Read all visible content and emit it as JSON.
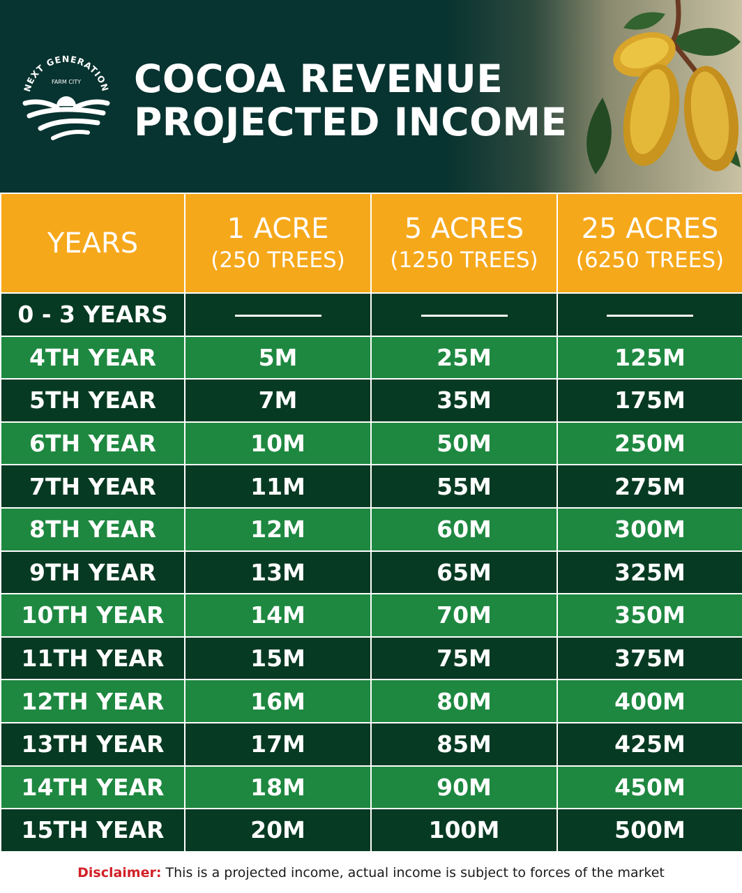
{
  "brand": {
    "arc_text": "NEXT GENERATION",
    "sub_text": "FARM CITY"
  },
  "header": {
    "title_line1": "COCOA REVENUE",
    "title_line2": "PROJECTED INCOME"
  },
  "table": {
    "columns": [
      {
        "main": "YEARS",
        "sub": ""
      },
      {
        "main": "1 ACRE",
        "sub": "(250 TREES)"
      },
      {
        "main": "5 ACRES",
        "sub": "(1250 TREES)"
      },
      {
        "main": "25 ACRES",
        "sub": "(6250 TREES)"
      }
    ],
    "rows": [
      {
        "year": "0 - 3 YEARS",
        "v1": "",
        "v5": "",
        "v25": "",
        "empty": true
      },
      {
        "year": "4TH YEAR",
        "v1": "5M",
        "v5": "25M",
        "v25": "125M"
      },
      {
        "year": "5TH YEAR",
        "v1": "7M",
        "v5": "35M",
        "v25": "175M"
      },
      {
        "year": "6TH YEAR",
        "v1": "10M",
        "v5": "50M",
        "v25": "250M"
      },
      {
        "year": "7TH YEAR",
        "v1": "11M",
        "v5": "55M",
        "v25": "275M"
      },
      {
        "year": "8TH YEAR",
        "v1": "12M",
        "v5": "60M",
        "v25": "300M"
      },
      {
        "year": "9TH YEAR",
        "v1": "13M",
        "v5": "65M",
        "v25": "325M"
      },
      {
        "year": "10TH YEAR",
        "v1": "14M",
        "v5": "70M",
        "v25": "350M"
      },
      {
        "year": "11TH YEAR",
        "v1": "15M",
        "v5": "75M",
        "v25": "375M"
      },
      {
        "year": "12TH YEAR",
        "v1": "16M",
        "v5": "80M",
        "v25": "400M"
      },
      {
        "year": "13TH YEAR",
        "v1": "17M",
        "v5": "85M",
        "v25": "425M"
      },
      {
        "year": "14TH YEAR",
        "v1": "18M",
        "v5": "90M",
        "v25": "450M"
      },
      {
        "year": "15TH YEAR",
        "v1": "20M",
        "v5": "100M",
        "v25": "500M"
      }
    ]
  },
  "disclaimer": {
    "label": "Disclaimer:",
    "text": "This is a projected income, actual income is subject to forces of the market"
  },
  "colors": {
    "header_bg": "#073330",
    "header_orange": "#f6a81b",
    "row_dark": "#073a22",
    "row_light": "#1e8840",
    "disclaimer_label": "#d22027"
  },
  "icons": {
    "logo": "farm-fields-sun-logo",
    "decor": "cocoa-pods-illustration"
  }
}
